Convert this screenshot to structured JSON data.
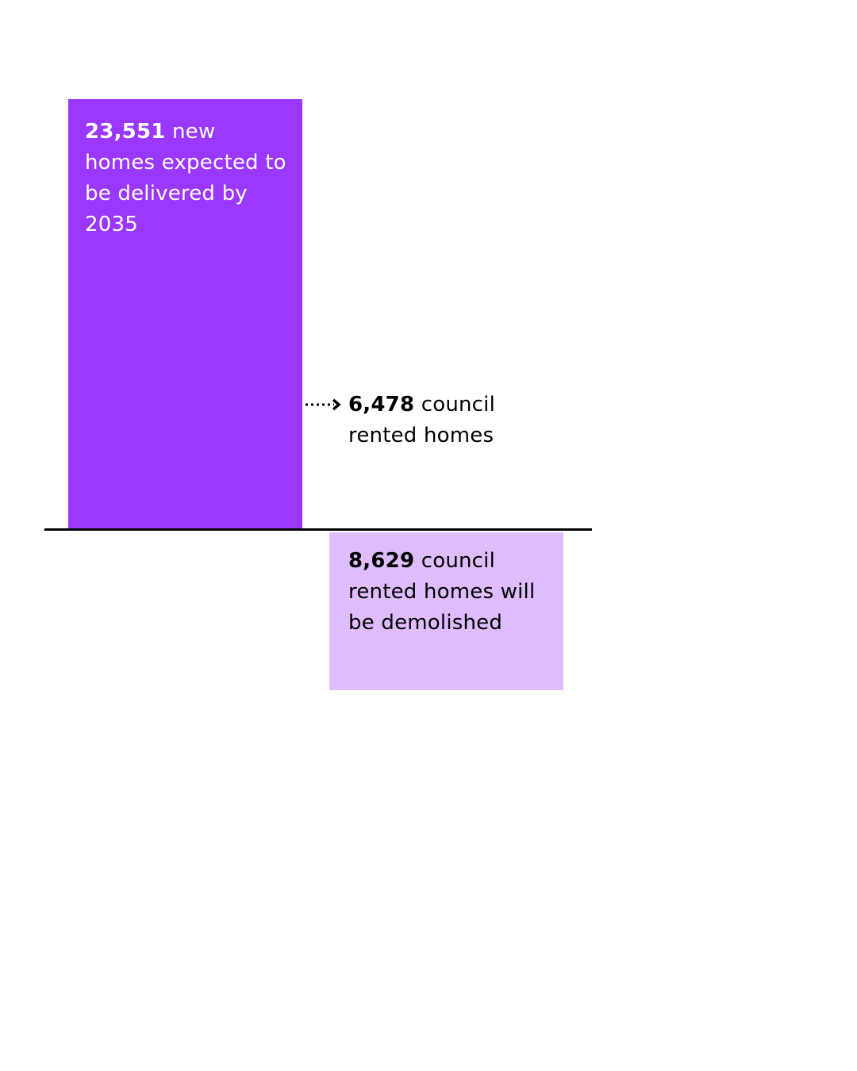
{
  "chart_data": {
    "type": "bar",
    "categories": [
      "New homes expected by 2035",
      "Council rented homes demolished"
    ],
    "values": [
      23551,
      -8629
    ],
    "annotation_value": 6478,
    "labels": [
      {
        "value_text": "23,551",
        "text": " new homes expected to be delivered by 2035"
      },
      {
        "value_text": "6,478",
        "text": " council rented homes"
      },
      {
        "value_text": "8,629",
        "text": " council rented homes will be demolished"
      }
    ],
    "colors": {
      "positive": "#9a38ff",
      "negative": "#dfbdfd",
      "baseline": "#000000",
      "text_on_dark": "#ffffff",
      "text": "#000000"
    },
    "xlabel": "",
    "ylabel": "",
    "grid": false
  }
}
